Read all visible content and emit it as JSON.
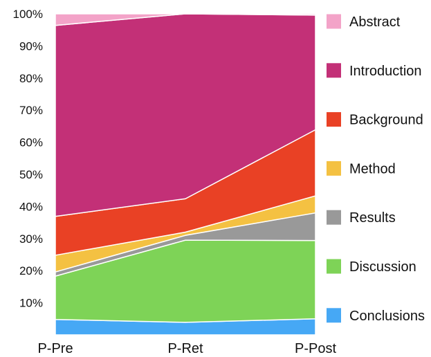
{
  "chart_data": {
    "type": "area",
    "stacked": true,
    "normalized": true,
    "categories": [
      "P-Pre",
      "P-Ret",
      "P-Post"
    ],
    "ylim": [
      0,
      100
    ],
    "yticks": [
      "10%",
      "20%",
      "30%",
      "40%",
      "50%",
      "60%",
      "70%",
      "80%",
      "90%",
      "100%"
    ],
    "grid": false,
    "legend_position": "right",
    "series": [
      {
        "name": "Conclusions",
        "color": "#46a8f5",
        "values": [
          4.8,
          3.9,
          5.0
        ]
      },
      {
        "name": "Discussion",
        "color": "#7ed357",
        "values": [
          13.5,
          25.6,
          24.4
        ]
      },
      {
        "name": "Results",
        "color": "#999999",
        "values": [
          1.3,
          1.5,
          8.6
        ]
      },
      {
        "name": "Method",
        "color": "#f4c142",
        "values": [
          5.2,
          1.0,
          5.3
        ]
      },
      {
        "name": "Background",
        "color": "#e94125",
        "values": [
          12.1,
          10.4,
          20.6
        ]
      },
      {
        "name": "Introduction",
        "color": "#c33077",
        "values": [
          59.5,
          57.6,
          35.7
        ]
      },
      {
        "name": "Abstract",
        "color": "#f3a3c8",
        "values": [
          3.6,
          0.0,
          0.4
        ]
      }
    ]
  }
}
